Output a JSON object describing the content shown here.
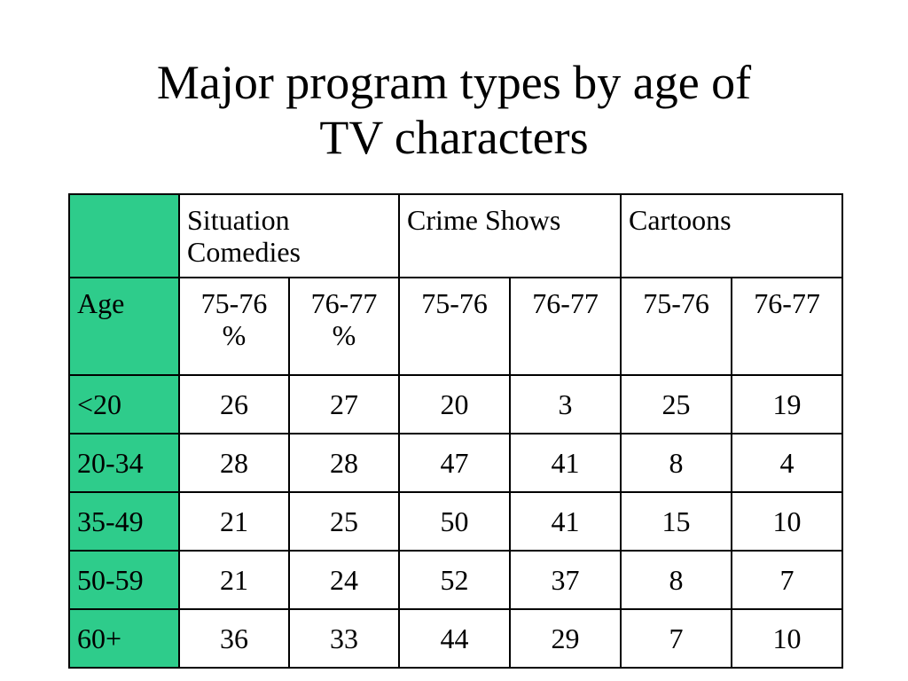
{
  "title": {
    "line1": "Major program types by age of",
    "line2": "TV characters"
  },
  "colors": {
    "label_column": "#2ecc8b",
    "border": "#000000"
  },
  "table": {
    "groups": [
      "Situation Comedies",
      "Crime Shows",
      "Cartoons"
    ],
    "age_header": "Age",
    "subheaders": [
      {
        "year": "75-76",
        "unit": "%"
      },
      {
        "year": "76-77",
        "unit": "%"
      },
      {
        "year": "75-76",
        "unit": ""
      },
      {
        "year": "76-77",
        "unit": ""
      },
      {
        "year": "75-76",
        "unit": ""
      },
      {
        "year": "76-77",
        "unit": ""
      }
    ],
    "rows": [
      {
        "label": "<20",
        "values": [
          "26",
          "27",
          "20",
          "3",
          "25",
          "19"
        ]
      },
      {
        "label": "20-34",
        "values": [
          "28",
          "28",
          "47",
          "41",
          "8",
          "4"
        ]
      },
      {
        "label": "35-49",
        "values": [
          "21",
          "25",
          "50",
          "41",
          "15",
          "10"
        ]
      },
      {
        "label": "50-59",
        "values": [
          "21",
          "24",
          "52",
          "37",
          "8",
          "7"
        ]
      },
      {
        "label": "60+",
        "values": [
          "36",
          "33",
          "44",
          "29",
          "7",
          "10"
        ]
      }
    ]
  }
}
